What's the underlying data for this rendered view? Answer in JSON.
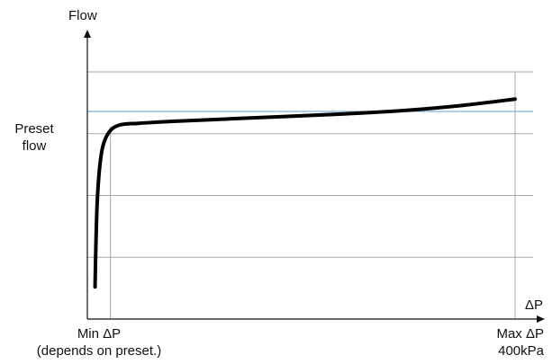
{
  "chart_data": {
    "type": "line",
    "xlabel": "ΔP",
    "ylabel": "Flow",
    "x_range": [
      0,
      100
    ],
    "y_range": [
      0,
      100
    ],
    "grid": true,
    "series": [
      {
        "x": [
          1.8,
          2.0,
          2.3,
          2.8,
          3.5,
          4.5,
          5.8,
          7.5,
          9.5,
          12,
          20,
          40,
          60,
          75,
          88,
          100
        ],
        "y": [
          13,
          30,
          47,
          60,
          69,
          74,
          77,
          78.5,
          79,
          79.2,
          80,
          81.5,
          83,
          84.5,
          86.5,
          89
        ]
      }
    ],
    "reference_line": {
      "y": 84,
      "label_line1": "Preset",
      "label_line2": "flow",
      "color": "#7fb0dd"
    },
    "ticks": {
      "min": {
        "x": 5.4,
        "label_line1": "Min ΔP",
        "label_line2": "(depends on preset.)"
      },
      "max": {
        "x": 100,
        "label_line1": "Max ΔP",
        "label_line2": "400kPa"
      }
    }
  }
}
